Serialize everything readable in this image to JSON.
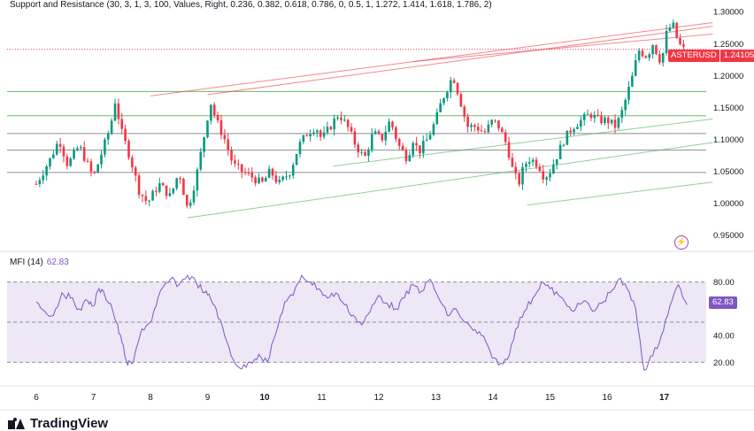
{
  "indicator_title": "Support and Resistance (30, 3, 1, 3, 100, Values, Right, 0.236, 0.382, 0.618, 0.786, 0, 0.5, 1, 1.272, 1.414, 1.618, 1.786, 2)",
  "price_label": {
    "symbol": "ASTERUSD",
    "value": "1.24105"
  },
  "mfi": {
    "title": "MFI (14)",
    "value": "62.83",
    "badge": "62.83"
  },
  "brand": {
    "name": "TradingView",
    "icon": "tradingview-logo-icon"
  },
  "event_icon": "lightning-event-icon",
  "colors": {
    "up": "#089981",
    "down": "#f23645",
    "mfi_line": "#7e57c2",
    "mfi_band": "#ede7f6",
    "support_green": "#4caf50",
    "resistance_red": "#f23645"
  },
  "chart_data": [
    {
      "type": "candlestick",
      "symbol": "ASTERUSD",
      "title": "Support and Resistance (30, 3, 1, 3, 100, Values, Right, 0.236, 0.382, 0.618, 0.786, 0, 0.5, 1, 1.272, 1.414, 1.618, 1.786, 2)",
      "ylim": [
        0.93,
        1.31
      ],
      "y_ticks": [
        "0.95000",
        "1.00000",
        "1.05000",
        "1.10000",
        "1.15000",
        "1.20000",
        "1.25000",
        "1.30000"
      ],
      "y_tick_values": [
        0.95,
        1.0,
        1.05,
        1.1,
        1.15,
        1.2,
        1.25,
        1.3
      ],
      "x_ticks": [
        "6",
        "7",
        "8",
        "9",
        "10",
        "11",
        "12",
        "13",
        "14",
        "15",
        "16",
        "17"
      ],
      "x_tick_bold": [
        false,
        false,
        false,
        false,
        true,
        false,
        false,
        false,
        false,
        false,
        false,
        true
      ],
      "last_price": 1.24105,
      "horizontal_levels": [
        {
          "value": 1.175,
          "color": "#4caf50"
        },
        {
          "value": 1.137,
          "color": "#4caf50"
        },
        {
          "value": 1.109,
          "color": "#787b86"
        },
        {
          "value": 1.083,
          "color": "#787b86"
        },
        {
          "value": 1.048,
          "color": "#787b86"
        }
      ],
      "trendlines": [
        {
          "from": [
            2.65,
            0.977
          ],
          "to": [
            11.85,
            1.095
          ],
          "color": "#4caf50"
        },
        {
          "from": [
            8.6,
            0.997
          ],
          "to": [
            11.85,
            1.033
          ],
          "color": "#4caf50"
        },
        {
          "from": [
            5.2,
            1.058
          ],
          "to": [
            11.85,
            1.132
          ],
          "color": "#4caf50"
        },
        {
          "from": [
            2.0,
            1.168
          ],
          "to": [
            11.85,
            1.283
          ],
          "color": "#f23645"
        },
        {
          "from": [
            3.0,
            1.17
          ],
          "to": [
            11.85,
            1.277
          ],
          "color": "#f23645"
        },
        {
          "from": [
            6.6,
            1.222
          ],
          "to": [
            11.85,
            1.265
          ],
          "color": "#f23645"
        }
      ],
      "candles_anchor": [
        [
          0.0,
          1.03
        ],
        [
          0.25,
          1.07
        ],
        [
          0.4,
          1.1
        ],
        [
          0.55,
          1.06
        ],
        [
          0.75,
          1.09
        ],
        [
          0.9,
          1.06
        ],
        [
          1.0,
          1.04
        ],
        [
          1.15,
          1.08
        ],
        [
          1.3,
          1.12
        ],
        [
          1.38,
          1.16
        ],
        [
          1.5,
          1.11
        ],
        [
          1.65,
          1.07
        ],
        [
          1.8,
          1.02
        ],
        [
          1.95,
          1.0
        ],
        [
          2.15,
          1.03
        ],
        [
          2.35,
          1.01
        ],
        [
          2.5,
          1.05
        ],
        [
          2.65,
          0.99
        ],
        [
          2.8,
          1.04
        ],
        [
          2.95,
          1.11
        ],
        [
          3.05,
          1.16
        ],
        [
          3.15,
          1.13
        ],
        [
          3.3,
          1.1
        ],
        [
          3.45,
          1.06
        ],
        [
          3.6,
          1.05
        ],
        [
          3.8,
          1.04
        ],
        [
          3.95,
          1.03
        ],
        [
          4.1,
          1.05
        ],
        [
          4.25,
          1.03
        ],
        [
          4.45,
          1.05
        ],
        [
          4.6,
          1.09
        ],
        [
          4.75,
          1.11
        ],
        [
          4.9,
          1.12
        ],
        [
          5.0,
          1.1
        ],
        [
          5.15,
          1.12
        ],
        [
          5.3,
          1.14
        ],
        [
          5.45,
          1.12
        ],
        [
          5.6,
          1.09
        ],
        [
          5.75,
          1.07
        ],
        [
          5.9,
          1.11
        ],
        [
          6.05,
          1.1
        ],
        [
          6.2,
          1.13
        ],
        [
          6.35,
          1.09
        ],
        [
          6.5,
          1.07
        ],
        [
          6.6,
          1.1
        ],
        [
          6.7,
          1.08
        ],
        [
          6.85,
          1.1
        ],
        [
          7.0,
          1.13
        ],
        [
          7.1,
          1.16
        ],
        [
          7.2,
          1.18
        ],
        [
          7.3,
          1.2
        ],
        [
          7.4,
          1.17
        ],
        [
          7.55,
          1.12
        ],
        [
          7.7,
          1.12
        ],
        [
          7.85,
          1.11
        ],
        [
          8.0,
          1.13
        ],
        [
          8.1,
          1.12
        ],
        [
          8.25,
          1.09
        ],
        [
          8.35,
          1.05
        ],
        [
          8.45,
          1.03
        ],
        [
          8.55,
          1.06
        ],
        [
          8.65,
          1.07
        ],
        [
          8.8,
          1.06
        ],
        [
          8.9,
          1.04
        ],
        [
          9.0,
          1.05
        ],
        [
          9.1,
          1.07
        ],
        [
          9.25,
          1.1
        ],
        [
          9.4,
          1.12
        ],
        [
          9.55,
          1.13
        ],
        [
          9.7,
          1.14
        ],
        [
          9.85,
          1.13
        ],
        [
          10.0,
          1.13
        ],
        [
          10.15,
          1.12
        ],
        [
          10.25,
          1.14
        ],
        [
          10.35,
          1.17
        ],
        [
          10.45,
          1.2
        ],
        [
          10.55,
          1.24
        ],
        [
          10.7,
          1.23
        ],
        [
          10.8,
          1.25
        ],
        [
          10.95,
          1.22
        ],
        [
          11.05,
          1.27
        ],
        [
          11.15,
          1.28
        ],
        [
          11.25,
          1.25
        ],
        [
          11.35,
          1.24
        ]
      ]
    },
    {
      "type": "line",
      "title": "MFI (14)",
      "current": 62.83,
      "ylim": [
        5,
        95
      ],
      "y_ticks": [
        "20.00",
        "40.00",
        "80.00"
      ],
      "y_tick_values": [
        20,
        40,
        80
      ],
      "bands": [
        20,
        50,
        80
      ],
      "series": [
        {
          "name": "MFI",
          "x": [
            0.0,
            0.15,
            0.3,
            0.45,
            0.6,
            0.75,
            0.9,
            1.0,
            1.1,
            1.2,
            1.3,
            1.4,
            1.5,
            1.6,
            1.7,
            1.85,
            2.0,
            2.1,
            2.2,
            2.35,
            2.5,
            2.65,
            2.8,
            2.95,
            3.05,
            3.15,
            3.3,
            3.45,
            3.6,
            3.75,
            3.9,
            4.05,
            4.2,
            4.35,
            4.5,
            4.65,
            4.8,
            4.95,
            5.1,
            5.25,
            5.4,
            5.55,
            5.7,
            5.85,
            6.0,
            6.15,
            6.3,
            6.45,
            6.6,
            6.75,
            6.9,
            7.05,
            7.2,
            7.35,
            7.5,
            7.65,
            7.8,
            7.95,
            8.1,
            8.25,
            8.4,
            8.55,
            8.7,
            8.85,
            9.0,
            9.15,
            9.3,
            9.45,
            9.6,
            9.75,
            9.9,
            10.05,
            10.2,
            10.35,
            10.5,
            10.65,
            10.8,
            10.95,
            11.1,
            11.25,
            11.4
          ],
          "values": [
            65,
            58,
            55,
            72,
            68,
            60,
            66,
            62,
            75,
            70,
            64,
            50,
            35,
            18,
            20,
            45,
            50,
            62,
            75,
            82,
            78,
            85,
            80,
            72,
            68,
            60,
            40,
            22,
            15,
            20,
            26,
            20,
            42,
            65,
            70,
            85,
            80,
            75,
            68,
            72,
            63,
            55,
            48,
            58,
            70,
            64,
            60,
            68,
            78,
            73,
            82,
            68,
            55,
            60,
            50,
            44,
            40,
            28,
            18,
            22,
            45,
            58,
            68,
            80,
            75,
            70,
            62,
            60,
            66,
            58,
            64,
            72,
            82,
            75,
            60,
            14,
            25,
            40,
            62,
            78,
            63
          ]
        }
      ]
    }
  ]
}
